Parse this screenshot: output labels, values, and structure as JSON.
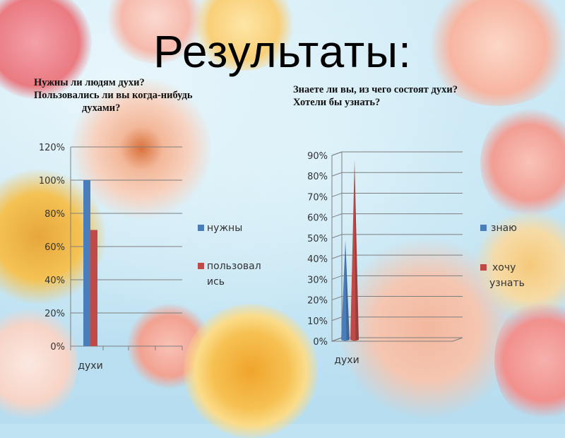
{
  "title": "Результаты:",
  "questions_left": {
    "line1": "Нужны ли людям духи?",
    "line2": "Пользовались ли вы когда-нибудь",
    "line3": "духами?"
  },
  "questions_right": {
    "line1": "Знаете ли вы, из чего состоят духи?",
    "line2": "Хотели бы узнать?"
  },
  "colors": {
    "blue": "#4a7ebb",
    "red": "#be4b48"
  },
  "chart_data": [
    {
      "type": "bar",
      "categories": [
        "духи"
      ],
      "series": [
        {
          "name": "нужны",
          "values": [
            100
          ]
        },
        {
          "name": "пользовал ись",
          "values": [
            70
          ]
        }
      ],
      "yticks": [
        "0%",
        "20%",
        "40%",
        "60%",
        "80%",
        "100%",
        "120%"
      ],
      "ylim": [
        0,
        120
      ],
      "legend": "right",
      "grid": true
    },
    {
      "type": "bar",
      "style": "3d-cone",
      "categories": [
        "духи"
      ],
      "series": [
        {
          "name": "знаю",
          "values": [
            47
          ]
        },
        {
          "name": "хочу узнать",
          "values": [
            86
          ]
        }
      ],
      "yticks": [
        "0%",
        "10%",
        "20%",
        "30%",
        "40%",
        "50%",
        "60%",
        "70%",
        "80%",
        "90%"
      ],
      "ylim": [
        0,
        90
      ],
      "legend": "right",
      "grid": true
    }
  ]
}
